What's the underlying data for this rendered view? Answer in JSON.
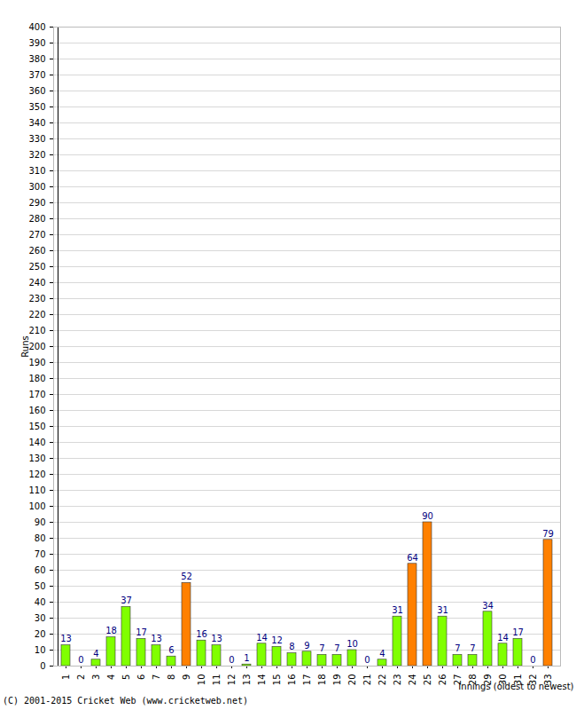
{
  "chart_data": {
    "type": "bar",
    "x_label": "Innings (oldest to newest)",
    "y_label": "Runs",
    "caption": "(C) 2001-2015 Cricket Web (www.cricketweb.net)",
    "categories": [
      "1",
      "2",
      "3",
      "4",
      "5",
      "6",
      "7",
      "8",
      "9",
      "10",
      "11",
      "12",
      "13",
      "14",
      "15",
      "16",
      "17",
      "18",
      "19",
      "20",
      "21",
      "22",
      "23",
      "24",
      "25",
      "26",
      "27",
      "28",
      "29",
      "30",
      "31",
      "32",
      "33"
    ],
    "values": [
      13,
      0,
      4,
      18,
      37,
      17,
      13,
      6,
      52,
      16,
      13,
      0,
      1,
      14,
      12,
      8,
      9,
      7,
      7,
      10,
      0,
      4,
      31,
      64,
      90,
      31,
      7,
      7,
      34,
      14,
      17,
      0,
      79
    ],
    "colors": [
      "#80ff00",
      "#80ff00",
      "#80ff00",
      "#80ff00",
      "#80ff00",
      "#80ff00",
      "#80ff00",
      "#80ff00",
      "#ff8000",
      "#80ff00",
      "#80ff00",
      "#80ff00",
      "#80ff00",
      "#80ff00",
      "#80ff00",
      "#80ff00",
      "#80ff00",
      "#80ff00",
      "#80ff00",
      "#80ff00",
      "#80ff00",
      "#80ff00",
      "#80ff00",
      "#ff8000",
      "#ff8000",
      "#80ff00",
      "#80ff00",
      "#80ff00",
      "#80ff00",
      "#80ff00",
      "#80ff00",
      "#80ff00",
      "#ff8000"
    ],
    "ylim": [
      0,
      400
    ],
    "yticks": [
      0,
      10,
      20,
      30,
      40,
      50,
      60,
      70,
      80,
      90,
      100,
      110,
      120,
      130,
      140,
      150,
      160,
      170,
      180,
      190,
      200,
      210,
      220,
      230,
      240,
      250,
      260,
      270,
      280,
      290,
      300,
      310,
      320,
      330,
      340,
      350,
      360,
      370,
      380,
      390,
      400
    ],
    "grid": true,
    "data_labels": true
  }
}
